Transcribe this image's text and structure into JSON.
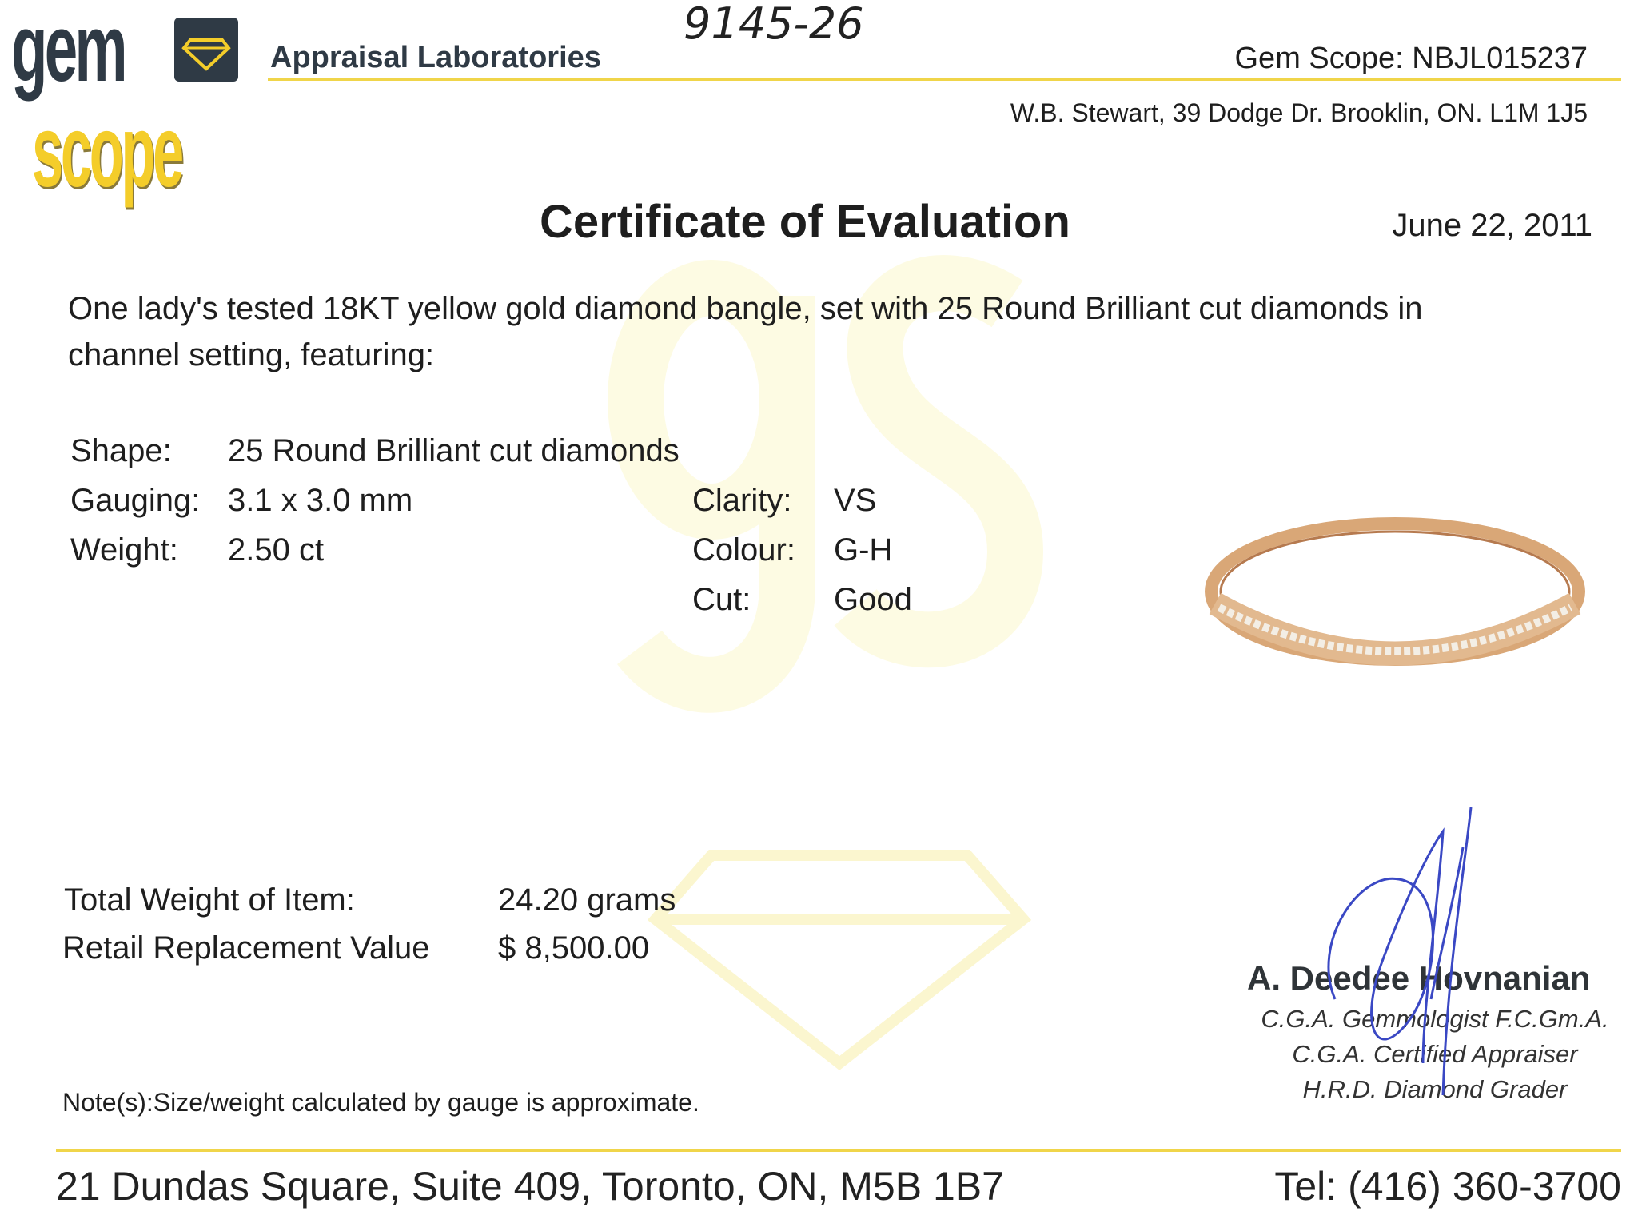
{
  "header": {
    "logo_text_top": "gem",
    "logo_text_bottom": "scope",
    "lab_name": "Appraisal Laboratories",
    "handwritten_ref": "9145-26",
    "gem_scope_id": "Gem Scope:  NBJL015237",
    "address": "W.B. Stewart, 39 Dodge Dr. Brooklin, ON. L1M 1J5"
  },
  "title": "Certificate of Evaluation",
  "date": "June 22, 2011",
  "description": [
    "One lady's  tested 18KT yellow gold diamond bangle, set with 25 Round Brilliant cut diamonds  in",
    "channel setting, featuring:"
  ],
  "specs_left": [
    {
      "label": "Shape:",
      "value": "25 Round Brilliant cut diamonds"
    },
    {
      "label": "Gauging:",
      "value": "3.1 x 3.0 mm"
    },
    {
      "label": "Weight:",
      "value": "2.50 ct"
    }
  ],
  "specs_right": [
    {
      "label": "Clarity:",
      "value": "VS"
    },
    {
      "label": "Colour:",
      "value": "G-H"
    },
    {
      "label": "Cut:",
      "value": "Good"
    }
  ],
  "totals": [
    {
      "label": "Total Weight of Item:",
      "value": "24.20 grams"
    },
    {
      "label": "Retail Replacement Value",
      "value": "$ 8,500.00"
    }
  ],
  "note": "Note(s):Size/weight calculated by gauge is approximate.",
  "signatory": {
    "name": "A. Deedee Hovnanian",
    "titles": [
      "C.G.A. Gemmologist F.C.Gm.A.",
      "C.G.A. Certified Appraiser",
      "H.R.D. Diamond Grader"
    ]
  },
  "footer": {
    "address": "21 Dundas Square, Suite 409, Toronto, ON, M5B 1B7",
    "phone": "Tel: (416) 360-3700"
  },
  "colors": {
    "brand_yellow": "#f4cd2a",
    "brand_dark": "#2f3a45",
    "signature_blue": "#3a48c4"
  }
}
